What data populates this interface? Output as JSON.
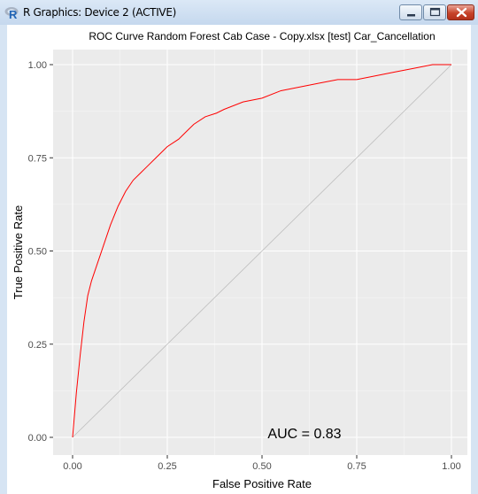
{
  "window": {
    "title": "R Graphics: Device 2 (ACTIVE)",
    "icon": "r-logo-icon",
    "controls": [
      "minimize-icon",
      "maximize-icon",
      "close-icon"
    ]
  },
  "chart_data": {
    "type": "line",
    "title": "ROC Curve Random Forest Cab Case - Copy.xlsx [test] Car_Cancellation",
    "xlabel": "False Positive Rate",
    "ylabel": "True Positive Rate",
    "xlim": [
      0,
      1
    ],
    "ylim": [
      0,
      1
    ],
    "xticks": [
      "0.00",
      "0.25",
      "0.50",
      "0.75",
      "1.00"
    ],
    "yticks": [
      "0.00",
      "0.25",
      "0.50",
      "0.75",
      "1.00"
    ],
    "grid": true,
    "annotation": "AUC = 0.83",
    "colors": {
      "panel": "#ebebeb",
      "grid": "#ffffff",
      "curve": "#ff0000",
      "diagonal": "#bdbdbd"
    },
    "series": [
      {
        "x": [
          0,
          0.01,
          0.02,
          0.03,
          0.04,
          0.05,
          0.06,
          0.08,
          0.1,
          0.12,
          0.14,
          0.16,
          0.18,
          0.2,
          0.22,
          0.25,
          0.28,
          0.3,
          0.32,
          0.35,
          0.38,
          0.4,
          0.45,
          0.5,
          0.55,
          0.6,
          0.65,
          0.7,
          0.75,
          0.8,
          0.85,
          0.9,
          0.95,
          1.0
        ],
        "y": [
          0,
          0.12,
          0.22,
          0.31,
          0.38,
          0.42,
          0.45,
          0.51,
          0.57,
          0.62,
          0.66,
          0.69,
          0.71,
          0.73,
          0.75,
          0.78,
          0.8,
          0.82,
          0.84,
          0.86,
          0.87,
          0.88,
          0.9,
          0.91,
          0.93,
          0.94,
          0.95,
          0.96,
          0.96,
          0.97,
          0.98,
          0.99,
          1.0,
          1.0
        ]
      },
      {
        "x": [
          0,
          1
        ],
        "y": [
          0,
          1
        ]
      }
    ]
  }
}
